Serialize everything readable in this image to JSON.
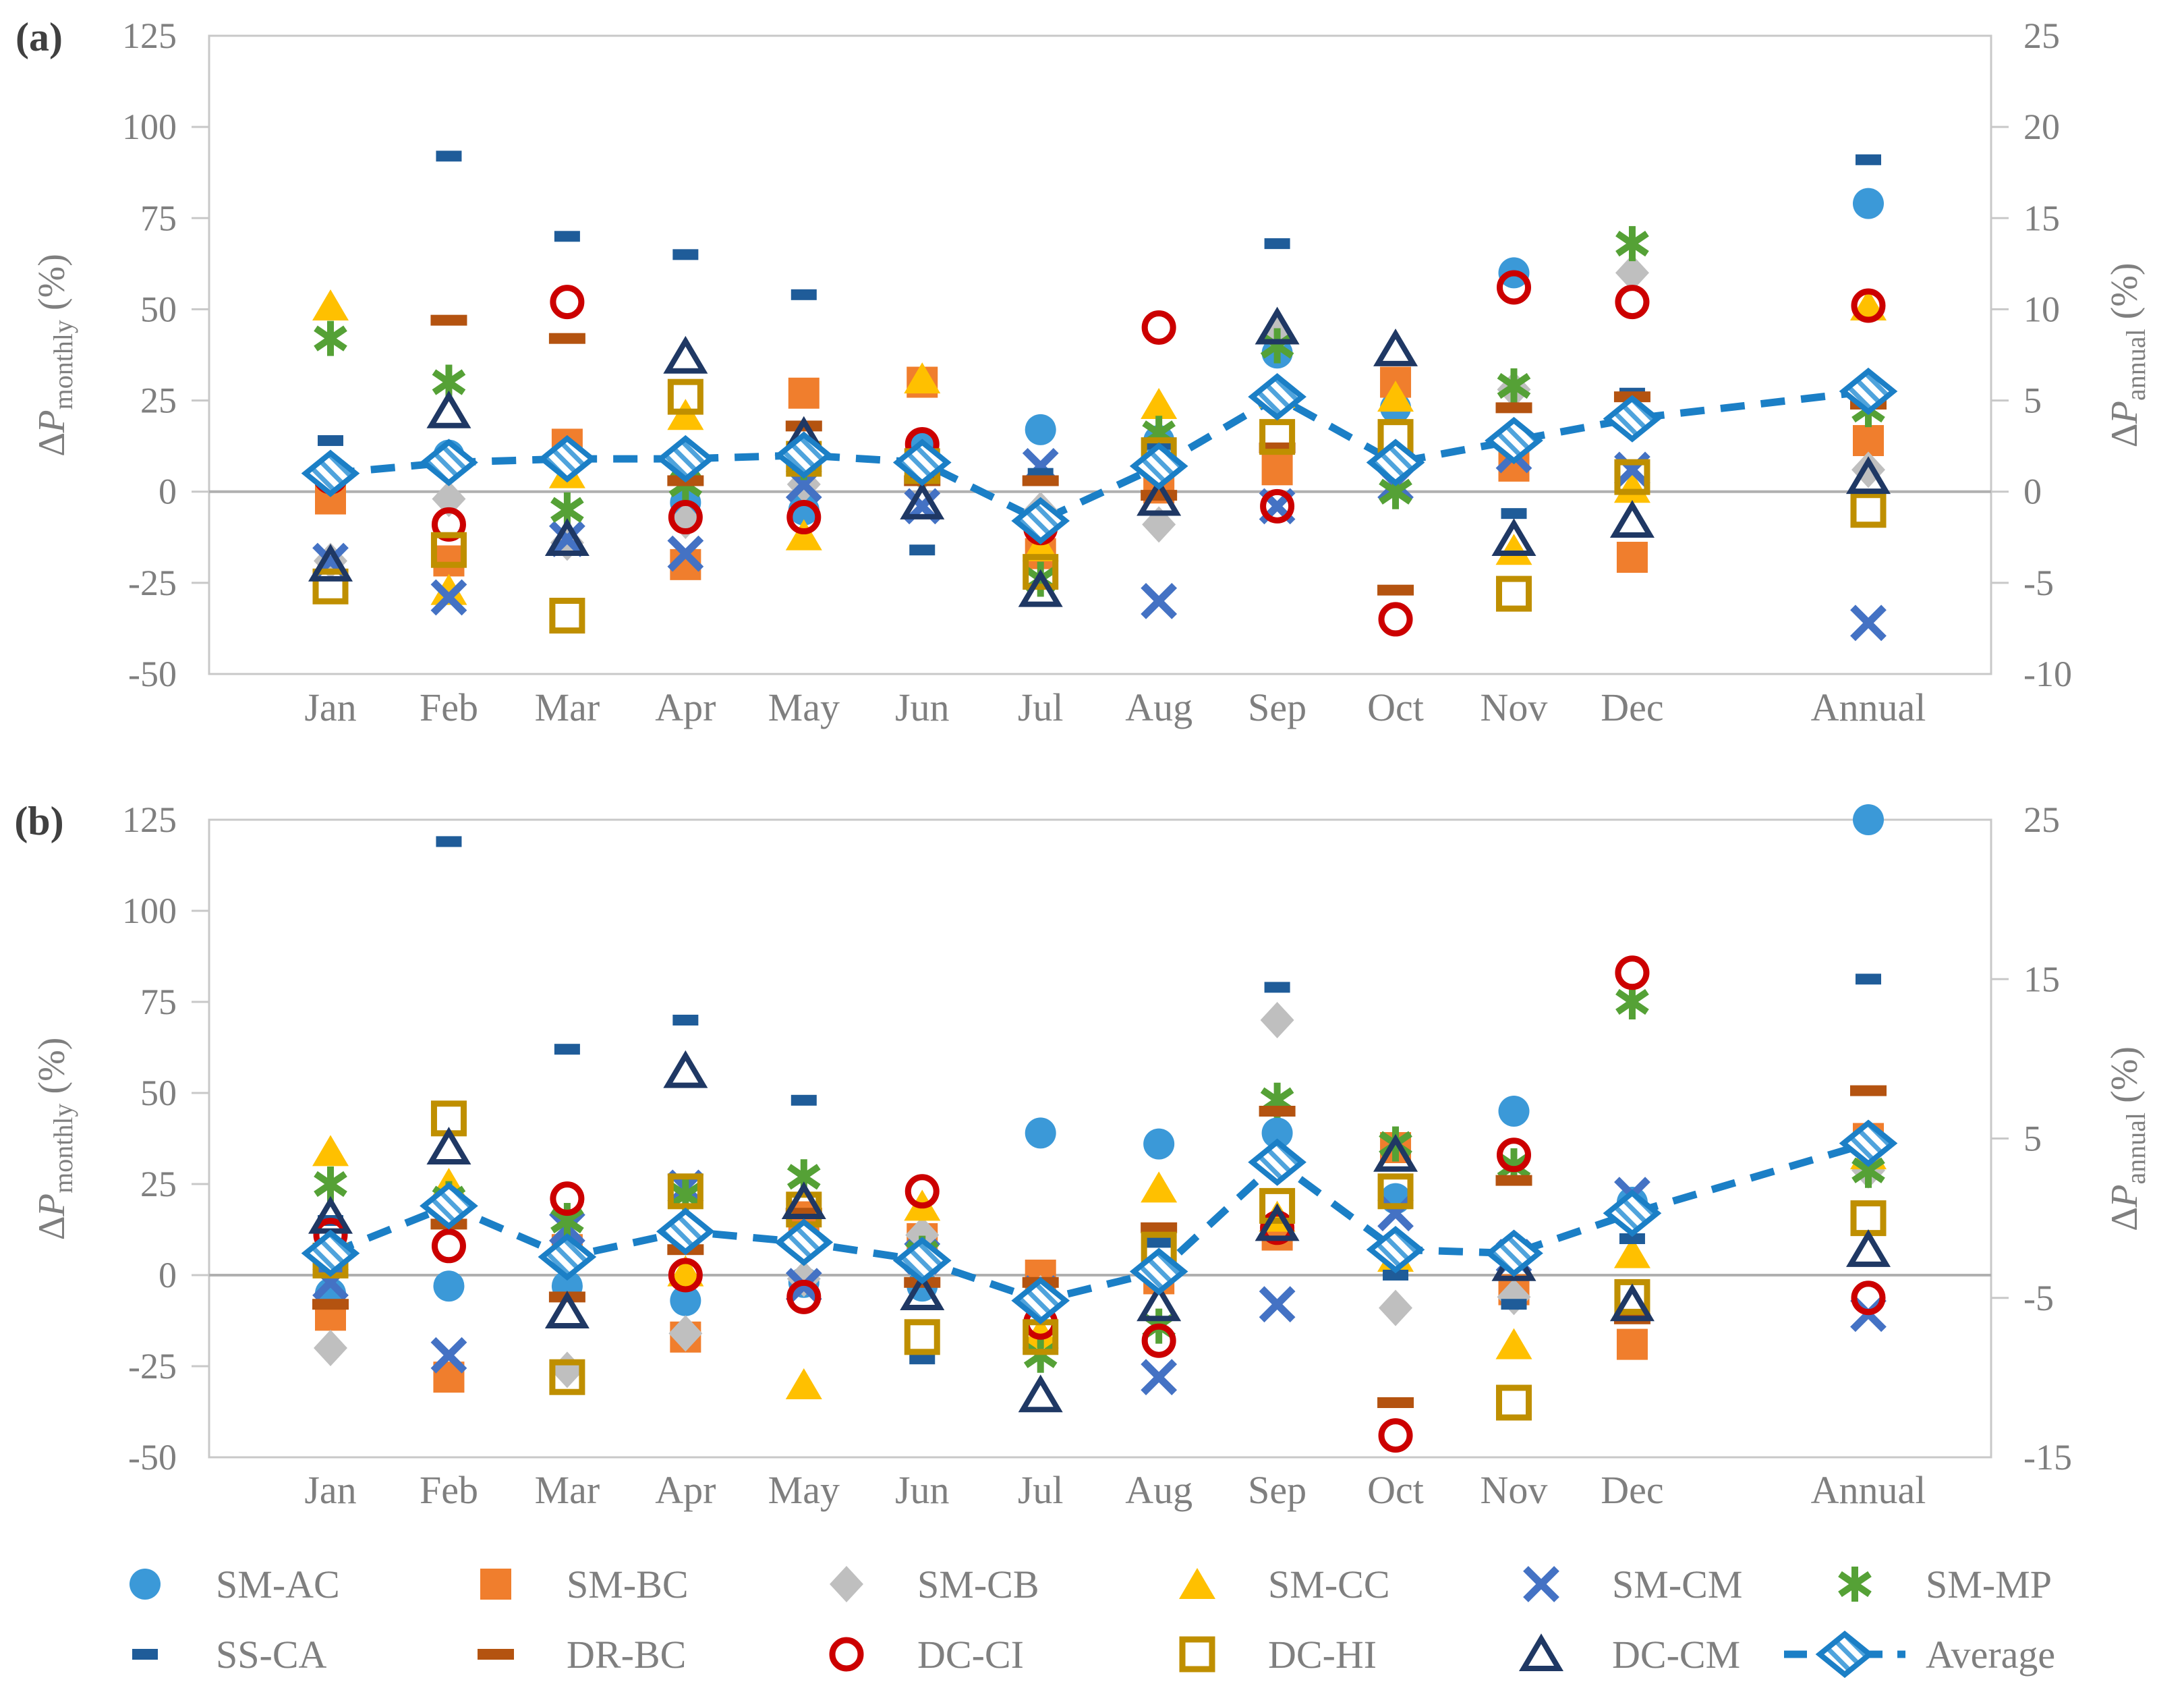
{
  "figure": {
    "panel_a_label": "(a)",
    "panel_b_label": "(b)",
    "text_color": "#7f7f7f",
    "border_color": "#c8c8c8",
    "zero_line_color": "#b0b0b0"
  },
  "series_styles": {
    "SM-AC": {
      "color": "#3b99d8",
      "marker": "circle-filled"
    },
    "SM-BC": {
      "color": "#f07e2d",
      "marker": "square-filled"
    },
    "SM-CB": {
      "color": "#bfbfbf",
      "marker": "diamond-filled"
    },
    "SM-CC": {
      "color": "#ffc000",
      "marker": "triangle-filled"
    },
    "SM-CM": {
      "color": "#4472c4",
      "marker": "x-cross"
    },
    "SM-MP": {
      "color": "#55a136",
      "marker": "asterisk"
    },
    "SS-CA": {
      "color": "#1f5c99",
      "marker": "dash-small"
    },
    "DR-BC": {
      "color": "#b45310",
      "marker": "dash-wide"
    },
    "DC-CI": {
      "color": "#cc0000",
      "marker": "circle-open"
    },
    "DC-HI": {
      "color": "#bf8f00",
      "marker": "square-open"
    },
    "DC-CM": {
      "color": "#1f3864",
      "marker": "triangle-open"
    },
    "Average": {
      "color": "#1b7fc6",
      "marker": "diamond-hatched"
    }
  },
  "legend": {
    "rows": [
      [
        "SM-AC",
        "SM-BC",
        "SM-CB",
        "SM-CC",
        "SM-CM",
        "SM-MP"
      ],
      [
        "SS-CA",
        "DR-BC",
        "DC-CI",
        "DC-HI",
        "DC-CM",
        "Average"
      ]
    ]
  },
  "chart_data": [
    {
      "panel": "(a)",
      "type": "scatter",
      "categories": [
        "Jan",
        "Feb",
        "Mar",
        "Apr",
        "May",
        "Jun",
        "Jul",
        "Aug",
        "Sep",
        "Oct",
        "Nov",
        "Dec",
        "Annual"
      ],
      "y_left": {
        "title_delta": "∆",
        "title_main": "P",
        "title_sub": "monthly",
        "title_unit": "(%)",
        "min": -50,
        "max": 125,
        "ticks": [
          125,
          100,
          75,
          50,
          25,
          0,
          -25,
          -50
        ]
      },
      "y_right": {
        "title_delta": "∆",
        "title_main": "P",
        "title_sub": "annual",
        "title_unit": "(%)",
        "min": -10,
        "max": 25,
        "ticks": [
          25,
          20,
          15,
          10,
          5,
          0,
          -5,
          -10
        ]
      },
      "annual_axis": "right",
      "series": [
        {
          "name": "SM-AC",
          "monthly": [
            6,
            10,
            8,
            -3,
            -5,
            12,
            17,
            14,
            38,
            23,
            60,
            21
          ],
          "annual": 15.8
        },
        {
          "name": "SM-BC",
          "monthly": [
            -2,
            -19,
            13,
            -20,
            27,
            30,
            -17,
            1,
            6,
            30,
            7,
            -18
          ],
          "annual": 2.8
        },
        {
          "name": "SM-CB",
          "monthly": [
            -19,
            -2,
            -14,
            -8,
            2,
            5,
            -5,
            -9,
            43,
            8,
            28,
            60
          ],
          "annual": 1.2
        },
        {
          "name": "SM-CC",
          "monthly": [
            51,
            -27,
            5,
            21,
            -12,
            31,
            -15,
            24,
            27,
            26,
            -16,
            1
          ],
          "annual": 10.2
        },
        {
          "name": "SM-CM",
          "monthly": [
            -19,
            -29,
            -13,
            -17,
            2,
            -4,
            7,
            -30,
            -4,
            2,
            10,
            6
          ],
          "annual": -7.2
        },
        {
          "name": "SM-MP",
          "monthly": [
            42,
            30,
            -5,
            2,
            8,
            6,
            -24,
            16,
            40,
            0,
            29,
            68
          ],
          "annual": 4.5
        },
        {
          "name": "SS-CA",
          "monthly": [
            14,
            92,
            70,
            65,
            54,
            -16,
            5,
            13,
            68,
            7,
            -6,
            27
          ],
          "annual": 18.2
        },
        {
          "name": "DR-BC",
          "monthly": [
            4,
            47,
            42,
            3,
            18,
            3,
            3,
            -1,
            12,
            -27,
            23,
            26
          ],
          "annual": 4.8
        },
        {
          "name": "DC-CI",
          "monthly": [
            4,
            -9,
            52,
            -7,
            -7,
            13,
            -10,
            45,
            -4,
            -35,
            56,
            52
          ],
          "annual": 10.2
        },
        {
          "name": "DC-HI",
          "monthly": [
            -26,
            -16,
            -34,
            26,
            9,
            7,
            -22,
            10,
            15,
            15,
            -28,
            4
          ],
          "annual": -1
        },
        {
          "name": "DC-CM",
          "monthly": [
            -20,
            22,
            -13,
            37,
            15,
            -3,
            -27,
            -2,
            45,
            39,
            -13,
            -8
          ],
          "annual": 0.8
        }
      ],
      "average": {
        "name": "Average",
        "monthly": [
          5,
          8,
          9,
          9,
          10,
          8,
          -8,
          7,
          26,
          8,
          14,
          20
        ],
        "annual": 5.5
      }
    },
    {
      "panel": "(b)",
      "type": "scatter",
      "categories": [
        "Jan",
        "Feb",
        "Mar",
        "Apr",
        "May",
        "Jun",
        "Jul",
        "Aug",
        "Sep",
        "Oct",
        "Nov",
        "Dec",
        "Annual"
      ],
      "y_left": {
        "title_delta": "∆",
        "title_main": "P",
        "title_sub": "monthly",
        "title_unit": "(%)",
        "min": -50,
        "max": 125,
        "ticks": [
          125,
          100,
          75,
          50,
          25,
          0,
          -25,
          -50
        ]
      },
      "y_right": {
        "title_delta": "∆",
        "title_main": "P",
        "title_sub": "annual",
        "title_unit": "(%)",
        "min": -15,
        "max": 25,
        "ticks": [
          25,
          15,
          5,
          -5,
          -15
        ]
      },
      "annual_axis": "right",
      "series": [
        {
          "name": "SM-AC",
          "monthly": [
            -5,
            -3,
            -3,
            -7,
            -2,
            -3,
            39,
            36,
            39,
            21,
            45,
            20
          ],
          "annual": 25
        },
        {
          "name": "SM-BC",
          "monthly": [
            -11,
            -28,
            7,
            -17,
            16,
            10,
            0,
            -1,
            11,
            35,
            -4,
            -19
          ],
          "annual": 5
        },
        {
          "name": "SM-CB",
          "monthly": [
            -20,
            20,
            -26,
            -16,
            -1,
            11,
            -5,
            2,
            70,
            -9,
            -6,
            18
          ],
          "annual": 3
        },
        {
          "name": "SM-CC",
          "monthly": [
            34,
            25,
            10,
            1,
            -30,
            19,
            -16,
            24,
            16,
            5,
            -19,
            6
          ],
          "annual": 4
        },
        {
          "name": "SM-CM",
          "monthly": [
            -2,
            -22,
            13,
            24,
            -3,
            5,
            -5,
            -28,
            -8,
            17,
            5,
            22
          ],
          "annual": -6
        },
        {
          "name": "SM-MP",
          "monthly": [
            25,
            21,
            15,
            22,
            27,
            6,
            -22,
            -14,
            48,
            36,
            30,
            75
          ],
          "annual": 3
        },
        {
          "name": "SS-CA",
          "monthly": [
            15,
            119,
            62,
            70,
            48,
            -23,
            -3,
            9,
            79,
            0,
            -8,
            10
          ],
          "annual": 15
        },
        {
          "name": "DR-BC",
          "monthly": [
            -8,
            14,
            -6,
            7,
            17,
            -2,
            -2,
            13,
            45,
            -35,
            26,
            -12
          ],
          "annual": 8
        },
        {
          "name": "DC-CI",
          "monthly": [
            11,
            8,
            21,
            0,
            -6,
            23,
            -13,
            -18,
            13,
            -44,
            33,
            83
          ],
          "annual": -5
        },
        {
          "name": "DC-HI",
          "monthly": [
            4,
            43,
            -28,
            23,
            18,
            -17,
            -17,
            7,
            19,
            23,
            -35,
            -6
          ],
          "annual": 0
        },
        {
          "name": "DC-CM",
          "monthly": [
            16,
            35,
            -10,
            56,
            20,
            -5,
            -33,
            -8,
            14,
            33,
            3,
            -8
          ],
          "annual": -2
        }
      ],
      "average": {
        "name": "Average",
        "monthly": [
          6,
          19,
          5,
          12,
          9,
          4,
          -7,
          1,
          31,
          7,
          6,
          17
        ],
        "annual": 4.7
      }
    }
  ]
}
